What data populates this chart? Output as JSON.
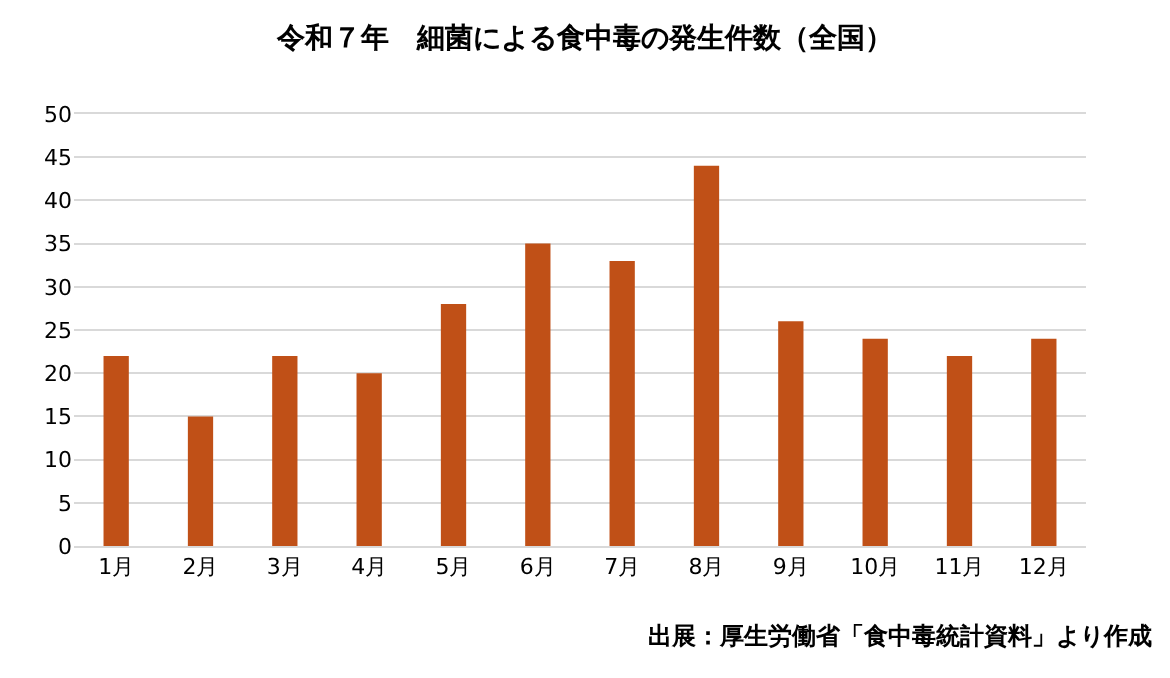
{
  "chart_data": {
    "type": "bar",
    "title": "令和７年　細菌による食中毒の発生件数（全国）",
    "categories": [
      "1月",
      "2月",
      "3月",
      "4月",
      "5月",
      "6月",
      "7月",
      "8月",
      "9月",
      "10月",
      "11月",
      "12月"
    ],
    "values": [
      22,
      15,
      22,
      20,
      28,
      35,
      33,
      44,
      26,
      24,
      22,
      24
    ],
    "color": "#c05017",
    "ylim": [
      0,
      50
    ],
    "yticks": [
      0,
      5,
      10,
      15,
      20,
      25,
      30,
      35,
      40,
      45,
      50
    ],
    "grid": "y",
    "annotations": [
      "出展：厚生労働省「食中毒統計資料」より作成"
    ]
  }
}
